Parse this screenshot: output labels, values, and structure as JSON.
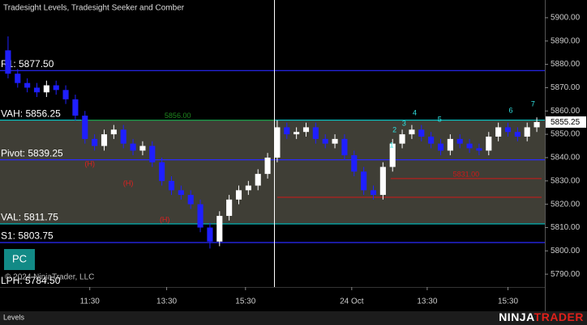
{
  "chart_data": {
    "type": "candlestick",
    "title": "Tradesight Levels, Tradesight Seeker and Comber",
    "ylim": [
      5784.5,
      5907.6
    ],
    "yticks": [
      {
        "value": 5790,
        "label": "5790.00"
      },
      {
        "value": 5800,
        "label": "5800.00"
      },
      {
        "value": 5810,
        "label": "5810.00"
      },
      {
        "value": 5820,
        "label": "5820.00"
      },
      {
        "value": 5830,
        "label": "5830.00"
      },
      {
        "value": 5840,
        "label": "5840.00"
      },
      {
        "value": 5850,
        "label": "5850.00"
      },
      {
        "value": 5860,
        "label": "5860.00"
      },
      {
        "value": 5870,
        "label": "5870.00"
      },
      {
        "value": 5880,
        "label": "5880.00"
      },
      {
        "value": 5890,
        "label": "5890.00"
      },
      {
        "value": 5900,
        "label": "5900.00"
      }
    ],
    "xlim": [
      -0.5,
      55.5
    ],
    "xticks": [
      {
        "value": 8.5,
        "label": "11:30"
      },
      {
        "value": 16.5,
        "label": "13:30"
      },
      {
        "value": 24.7,
        "label": "15:30"
      },
      {
        "value": 35.75,
        "label": "24 Oct"
      },
      {
        "value": 43.6,
        "label": "13:30"
      },
      {
        "value": 52.0,
        "label": "15:30"
      }
    ],
    "up_color": "#ffffff",
    "down_color": "#1f1fff",
    "open": [
      5886,
      5876,
      5872,
      5870,
      5868,
      5871,
      5869,
      5865,
      5858,
      5848,
      5845,
      5850,
      5852,
      5846,
      5843,
      5845,
      5838,
      5830,
      5826,
      5824,
      5820,
      5810,
      5804,
      5815,
      5822,
      5826,
      5828,
      5833,
      5840,
      5853,
      5850,
      5851,
      5853,
      5848,
      5846,
      5848,
      5841,
      5834,
      5826,
      5824,
      5836,
      5846,
      5850,
      5852,
      5849,
      5846,
      5843,
      5848,
      5846,
      5844,
      5843,
      5849,
      5853,
      5851,
      5849,
      5853
    ],
    "high": [
      5892,
      5878,
      5874,
      5872,
      5873,
      5873,
      5871,
      5867,
      5860,
      5850,
      5852,
      5854,
      5854,
      5848,
      5847,
      5847,
      5840,
      5832,
      5828,
      5826,
      5822,
      5812,
      5817,
      5824,
      5828,
      5830,
      5835,
      5842,
      5856,
      5855,
      5853,
      5855,
      5855,
      5850,
      5850,
      5850,
      5843,
      5836,
      5828,
      5838,
      5848,
      5852,
      5854,
      5854,
      5851,
      5848,
      5850,
      5850,
      5848,
      5846,
      5851,
      5855,
      5855,
      5853,
      5855,
      5857.25
    ],
    "low": [
      5874,
      5870,
      5868,
      5866,
      5866,
      5867,
      5863,
      5856,
      5846,
      5843,
      5843,
      5848,
      5844,
      5841,
      5841,
      5836,
      5828,
      5824,
      5822,
      5818,
      5808,
      5801,
      5802,
      5813,
      5820,
      5824,
      5826,
      5831,
      5838,
      5848,
      5848,
      5849,
      5846,
      5844,
      5844,
      5839,
      5832,
      5824,
      5822,
      5822,
      5834,
      5844,
      5848,
      5847,
      5844,
      5841,
      5841,
      5844,
      5842,
      5841,
      5841,
      5847,
      5849,
      5847,
      5847,
      5851
    ],
    "close": [
      5876,
      5872,
      5870,
      5868,
      5871,
      5869,
      5865,
      5858,
      5848,
      5845,
      5850,
      5852,
      5846,
      5843,
      5845,
      5838,
      5830,
      5826,
      5824,
      5820,
      5810,
      5804,
      5815,
      5822,
      5826,
      5828,
      5833,
      5840,
      5853,
      5850,
      5851,
      5853,
      5848,
      5846,
      5848,
      5841,
      5834,
      5826,
      5824,
      5836,
      5846,
      5850,
      5852,
      5849,
      5846,
      5843,
      5848,
      5846,
      5844,
      5843,
      5849,
      5853,
      5851,
      5849,
      5853,
      5855.25
    ],
    "levels": [
      {
        "label": "R1: 5877.50",
        "value": 5877.5,
        "color": "#2a2aff"
      },
      {
        "label": "VAH: 5856.25",
        "value": 5856.25,
        "color": "#00c8c8",
        "shade": "#4a493f"
      },
      {
        "label": "Pivot: 5839.25",
        "value": 5839.25,
        "color": "#2a2aff"
      },
      {
        "label": "VAL: 5811.75",
        "value": 5811.75,
        "color": "#00c8c8",
        "shade": "#4a493f"
      },
      {
        "label": "S1: 5803.75",
        "value": 5803.75,
        "color": "#2a2aff"
      },
      {
        "label": "LPH: 5784.50",
        "value": 5784.5,
        "color": "#2a2aff"
      }
    ],
    "segments": [
      {
        "label": "5856.00",
        "value": 5856,
        "color": "#1f8a1f",
        "from": 7.6,
        "to": 27.7
      },
      {
        "label": "5831.00",
        "value": 5831,
        "color": "#d01818",
        "from": 39.8,
        "to": 55.5
      },
      {
        "value": 5823,
        "color": "#d01818",
        "from": 28,
        "to": 55.5
      }
    ],
    "markers": [
      {
        "label": "(H)",
        "x": 8.5,
        "y": 5837.2,
        "color": "#e02020"
      },
      {
        "label": "(H)",
        "x": 12.5,
        "y": 5828.9,
        "color": "#e02020"
      },
      {
        "label": "(H)",
        "x": 16.3,
        "y": 5813.3,
        "color": "#e02020"
      },
      {
        "label": "1",
        "x": 39.9,
        "y": 5845.2,
        "color": "#30e0e0"
      },
      {
        "label": "2",
        "x": 40.2,
        "y": 5851.8,
        "color": "#30e0e0"
      },
      {
        "label": "3",
        "x": 41.2,
        "y": 5854.5,
        "color": "#30e0e0"
      },
      {
        "label": "4",
        "x": 42.3,
        "y": 5859,
        "color": "#30e0e0"
      },
      {
        "label": "5",
        "x": 44.9,
        "y": 5856.3,
        "color": "#30e0e0"
      },
      {
        "label": "6",
        "x": 52.3,
        "y": 5860.1,
        "color": "#30e0e0"
      },
      {
        "label": "7",
        "x": 54.6,
        "y": 5862.9,
        "color": "#30e0e0"
      }
    ],
    "last_price": {
      "value": 5855.25,
      "label": "5855.25"
    },
    "button": "PC",
    "copyright": "© 2024 NinjaTrader, LLC",
    "footer": "Levels",
    "logo": [
      "NINJA",
      "TRADER"
    ]
  }
}
